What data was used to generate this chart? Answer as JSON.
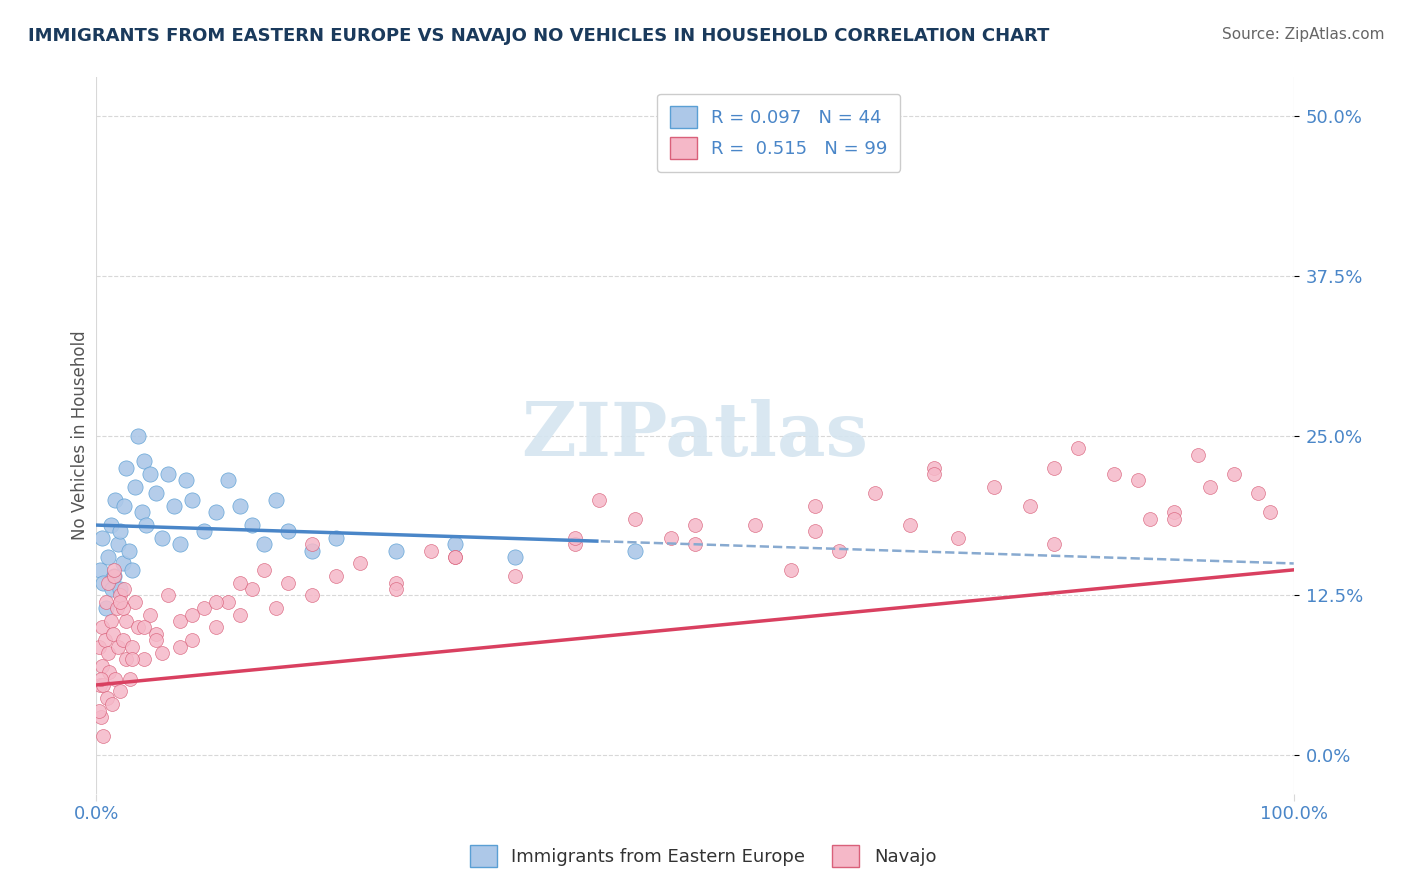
{
  "title": "IMMIGRANTS FROM EASTERN EUROPE VS NAVAJO NO VEHICLES IN HOUSEHOLD CORRELATION CHART",
  "source": "Source: ZipAtlas.com",
  "ylabel": "No Vehicles in Household",
  "xlim": [
    0,
    100
  ],
  "ylim": [
    -3,
    53
  ],
  "ytick_vals": [
    0,
    12.5,
    25.0,
    37.5,
    50.0
  ],
  "ytick_labels": [
    "0.0%",
    "12.5%",
    "25.0%",
    "37.5%",
    "50.0%"
  ],
  "xtick_vals": [
    0,
    100
  ],
  "xtick_labels": [
    "0.0%",
    "100.0%"
  ],
  "legend_line1": "R = 0.097   N = 44",
  "legend_line2": "R =  0.515   N = 99",
  "blue_scatter_color": "#adc8e8",
  "blue_scatter_edge": "#5a9fd4",
  "pink_scatter_color": "#f5b8c8",
  "pink_scatter_edge": "#d9607a",
  "blue_line_color": "#4a86c8",
  "pink_line_color": "#d94060",
  "dash_color": "#88aad0",
  "title_color": "#1a3a5c",
  "axis_label_color": "#4a86c8",
  "watermark_color": "#d5e5f0",
  "grid_color": "#d8d8d8",
  "blue_scatter_x": [
    0.3,
    0.5,
    0.6,
    0.8,
    1.0,
    1.2,
    1.3,
    1.5,
    1.6,
    1.8,
    2.0,
    2.0,
    2.2,
    2.3,
    2.5,
    2.7,
    3.0,
    3.2,
    3.5,
    3.8,
    4.0,
    4.2,
    4.5,
    5.0,
    5.5,
    6.0,
    6.5,
    7.0,
    7.5,
    8.0,
    9.0,
    10.0,
    11.0,
    12.0,
    13.0,
    14.0,
    15.0,
    16.0,
    18.0,
    20.0,
    25.0,
    30.0,
    35.0,
    45.0
  ],
  "blue_scatter_y": [
    14.5,
    17.0,
    13.5,
    11.5,
    15.5,
    18.0,
    13.0,
    14.0,
    20.0,
    16.5,
    13.0,
    17.5,
    15.0,
    19.5,
    22.5,
    16.0,
    14.5,
    21.0,
    25.0,
    19.0,
    23.0,
    18.0,
    22.0,
    20.5,
    17.0,
    22.0,
    19.5,
    16.5,
    21.5,
    20.0,
    17.5,
    19.0,
    21.5,
    19.5,
    18.0,
    16.5,
    20.0,
    17.5,
    16.0,
    17.0,
    16.0,
    16.5,
    15.5,
    16.0
  ],
  "pink_scatter_x": [
    0.2,
    0.3,
    0.4,
    0.5,
    0.5,
    0.6,
    0.7,
    0.8,
    0.9,
    1.0,
    1.0,
    1.1,
    1.2,
    1.3,
    1.4,
    1.5,
    1.6,
    1.7,
    1.8,
    2.0,
    2.0,
    2.2,
    2.3,
    2.5,
    2.5,
    2.8,
    3.0,
    3.2,
    3.5,
    4.0,
    4.5,
    5.0,
    5.5,
    6.0,
    7.0,
    8.0,
    9.0,
    10.0,
    11.0,
    12.0,
    13.0,
    15.0,
    16.0,
    18.0,
    20.0,
    22.0,
    25.0,
    28.0,
    30.0,
    35.0,
    40.0,
    42.0,
    45.0,
    48.0,
    50.0,
    55.0,
    58.0,
    60.0,
    62.0,
    65.0,
    68.0,
    70.0,
    72.0,
    75.0,
    78.0,
    80.0,
    82.0,
    85.0,
    87.0,
    88.0,
    90.0,
    92.0,
    93.0,
    95.0,
    97.0,
    98.0,
    0.2,
    0.4,
    0.6,
    1.5,
    2.2,
    3.0,
    5.0,
    7.0,
    10.0,
    14.0,
    18.0,
    25.0,
    30.0,
    40.0,
    50.0,
    60.0,
    70.0,
    80.0,
    90.0,
    2.0,
    4.0,
    8.0,
    12.0
  ],
  "pink_scatter_y": [
    8.5,
    5.5,
    3.0,
    7.0,
    10.0,
    5.5,
    9.0,
    12.0,
    4.5,
    8.0,
    13.5,
    6.5,
    10.5,
    4.0,
    9.5,
    14.0,
    6.0,
    11.5,
    8.5,
    12.5,
    5.0,
    9.0,
    13.0,
    7.5,
    10.5,
    6.0,
    8.5,
    12.0,
    10.0,
    7.5,
    11.0,
    9.5,
    8.0,
    12.5,
    10.5,
    9.0,
    11.5,
    10.0,
    12.0,
    11.0,
    13.0,
    11.5,
    13.5,
    12.5,
    14.0,
    15.0,
    13.5,
    16.0,
    15.5,
    14.0,
    16.5,
    20.0,
    18.5,
    17.0,
    16.5,
    18.0,
    14.5,
    17.5,
    16.0,
    20.5,
    18.0,
    22.5,
    17.0,
    21.0,
    19.5,
    16.5,
    24.0,
    22.0,
    21.5,
    18.5,
    19.0,
    23.5,
    21.0,
    22.0,
    20.5,
    19.0,
    3.5,
    6.0,
    1.5,
    14.5,
    11.5,
    7.5,
    9.0,
    8.5,
    12.0,
    14.5,
    16.5,
    13.0,
    15.5,
    17.0,
    18.0,
    19.5,
    22.0,
    22.5,
    18.5,
    12.0,
    10.0,
    11.0,
    13.5
  ],
  "blue_line_x_solid_end": 42,
  "blue_line_start_y": 18.0,
  "blue_line_slope": -0.03,
  "pink_line_start_y": 5.5,
  "pink_line_slope": 0.09
}
